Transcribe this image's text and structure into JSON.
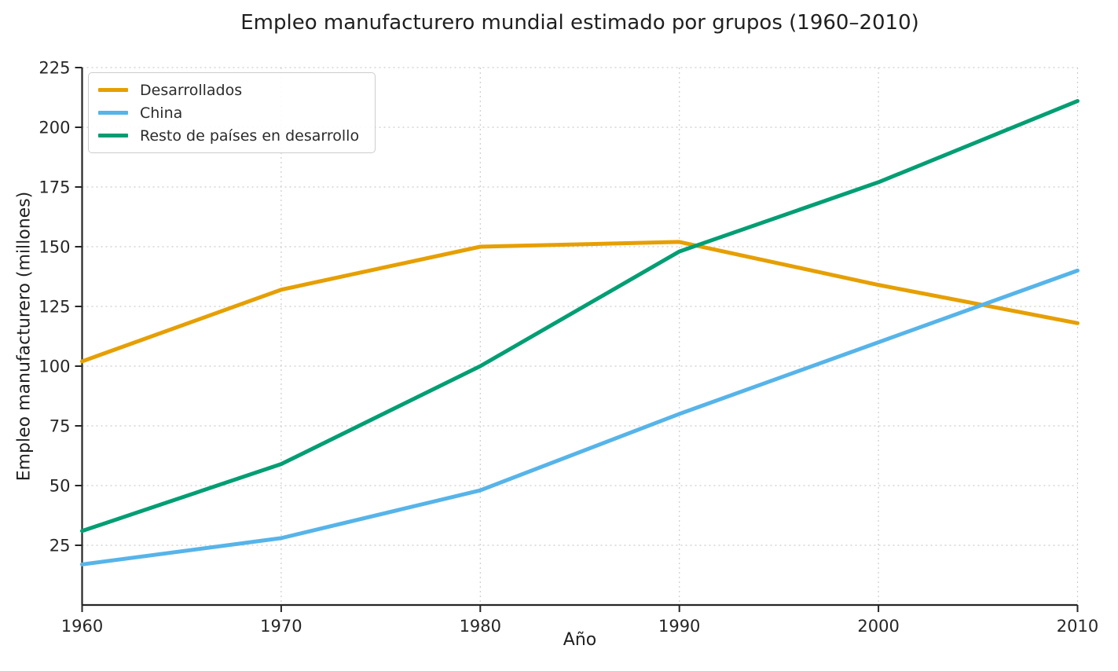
{
  "title": "Empleo manufacturero mundial estimado por grupos (1960–2010)",
  "colors": {
    "text": "#1f1f1f",
    "tick_text": "#262626",
    "grid": "#cccccc",
    "spine": "#262626",
    "legend_border": "#cccccc",
    "background": "#ffffff"
  },
  "chart_data": {
    "type": "line",
    "title": "Empleo manufacturero mundial estimado por grupos (1960–2010)",
    "xlabel": "Año",
    "ylabel": "Empleo manufacturero (millones)",
    "x": [
      1960,
      1970,
      1980,
      1990,
      2000,
      2010
    ],
    "series": [
      {
        "name": "Desarrollados",
        "color": "#E69F00",
        "values": [
          102,
          132,
          150,
          152,
          134,
          118
        ]
      },
      {
        "name": "China",
        "color": "#56B4E9",
        "values": [
          17,
          28,
          48,
          80,
          110,
          140
        ]
      },
      {
        "name": "Resto de países en desarrollo",
        "color": "#009E73",
        "values": [
          31,
          59,
          100,
          148,
          177,
          211
        ]
      }
    ],
    "xlim": [
      1960,
      2010
    ],
    "ylim": [
      0,
      225
    ],
    "xticks": [
      1960,
      1970,
      1980,
      1990,
      2000,
      2010
    ],
    "yticks": [
      25,
      50,
      75,
      100,
      125,
      150,
      175,
      200,
      225
    ],
    "grid": true,
    "grid_style": "dashed",
    "legend_position": "upper left",
    "line_width": 5
  }
}
